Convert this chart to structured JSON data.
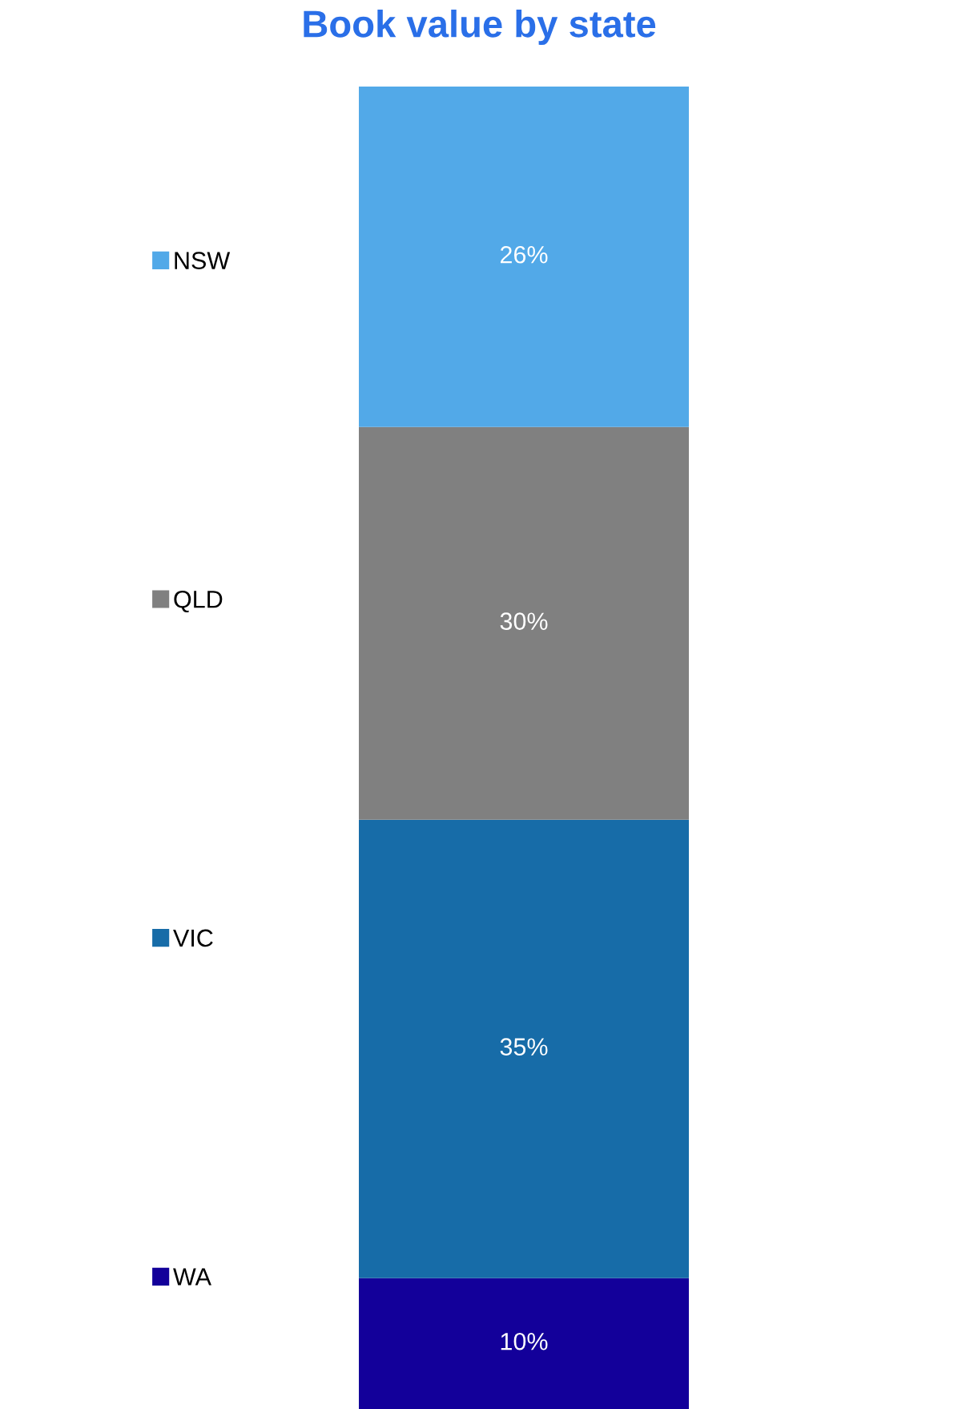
{
  "chart_data": {
    "type": "bar",
    "title": "Book value by state",
    "stacked": true,
    "categories": [
      null
    ],
    "series": [
      {
        "name": "WA",
        "color": "#13009a",
        "values": [
          10
        ],
        "value_labels": [
          "10%"
        ]
      },
      {
        "name": "VIC",
        "color": "#176ca8",
        "values": [
          35
        ],
        "value_labels": [
          "35%"
        ]
      },
      {
        "name": "QLD",
        "color": "#808080",
        "values": [
          30
        ],
        "value_labels": [
          "30%"
        ]
      },
      {
        "name": "NSW",
        "color": "#52a9e8",
        "values": [
          26
        ],
        "value_labels": [
          "26%"
        ]
      }
    ],
    "legend": "left",
    "tick_labels": false
  }
}
